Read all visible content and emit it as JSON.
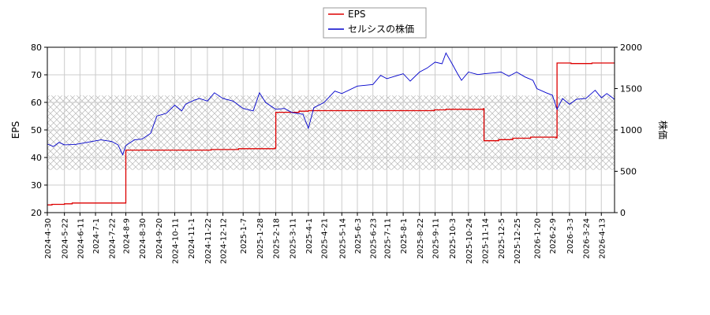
{
  "chart_data": {
    "type": "line",
    "title": "",
    "xlabel": "",
    "ylabel": "EPS",
    "y2label": "株価",
    "ylim": [
      20,
      80
    ],
    "y2lim": [
      0,
      2000
    ],
    "yticks": [
      20,
      30,
      40,
      50,
      60,
      70,
      80
    ],
    "y2ticks": [
      0,
      500,
      1000,
      1500,
      2000
    ],
    "xlim": [
      "2024-04-30",
      "2026-04-30"
    ],
    "xticks": [
      "2024-4-30",
      "2024-5-22",
      "2024-6-11",
      "2024-7-1",
      "2024-7-22",
      "2024-8-9",
      "2024-8-30",
      "2024-9-20",
      "2024-10-11",
      "2024-11-1",
      "2024-11-22",
      "2024-12-12",
      "2025-1-7",
      "2025-1-28",
      "2025-2-18",
      "2025-3-11",
      "2025-4-1",
      "2025-4-21",
      "2025-5-14",
      "2025-6-3",
      "2025-6-23",
      "2025-7-11",
      "2025-8-1",
      "2025-8-22",
      "2025-9-11",
      "2025-10-3",
      "2025-10-24",
      "2025-11-14",
      "2025-12-5",
      "2025-12-25",
      "2026-1-20",
      "2026-2-9",
      "2026-3-3",
      "2026-3-24",
      "2026-4-13"
    ],
    "grid": true,
    "legend_position": "top-center",
    "hatched_band": [
      35.5,
      62.5
    ],
    "series": [
      {
        "name": "EPS",
        "axis": "left",
        "color": "#dd0000",
        "step": true,
        "points": [
          [
            "2024-04-30",
            22.8
          ],
          [
            "2024-05-06",
            23.0
          ],
          [
            "2024-05-22",
            23.2
          ],
          [
            "2024-06-01",
            23.5
          ],
          [
            "2024-08-08",
            23.5
          ],
          [
            "2024-08-09",
            42.7
          ],
          [
            "2024-11-27",
            42.9
          ],
          [
            "2025-01-01",
            43.2
          ],
          [
            "2025-02-17",
            43.4
          ],
          [
            "2025-02-18",
            56.4
          ],
          [
            "2025-03-20",
            56.8
          ],
          [
            "2025-04-01",
            57.0
          ],
          [
            "2025-09-01",
            57.0
          ],
          [
            "2025-09-10",
            57.3
          ],
          [
            "2025-09-25",
            57.5
          ],
          [
            "2025-11-12",
            57.7
          ],
          [
            "2025-11-13",
            46.1
          ],
          [
            "2025-12-02",
            46.5
          ],
          [
            "2025-12-20",
            47.0
          ],
          [
            "2026-01-12",
            47.4
          ],
          [
            "2026-02-14",
            47.1
          ],
          [
            "2026-02-15",
            74.3
          ],
          [
            "2026-03-05",
            74.1
          ],
          [
            "2026-04-01",
            74.3
          ],
          [
            "2026-04-30",
            74.3
          ]
        ]
      },
      {
        "name": "セルシスの株価",
        "axis": "right",
        "color": "#0000cc",
        "points": [
          [
            "2024-04-30",
            830
          ],
          [
            "2024-05-08",
            800
          ],
          [
            "2024-05-15",
            850
          ],
          [
            "2024-05-22",
            820
          ],
          [
            "2024-06-05",
            825
          ],
          [
            "2024-06-20",
            850
          ],
          [
            "2024-07-08",
            880
          ],
          [
            "2024-07-22",
            860
          ],
          [
            "2024-07-30",
            820
          ],
          [
            "2024-08-05",
            700
          ],
          [
            "2024-08-09",
            810
          ],
          [
            "2024-08-20",
            880
          ],
          [
            "2024-08-30",
            890
          ],
          [
            "2024-09-10",
            960
          ],
          [
            "2024-09-18",
            1170
          ],
          [
            "2024-09-30",
            1200
          ],
          [
            "2024-10-11",
            1300
          ],
          [
            "2024-10-20",
            1230
          ],
          [
            "2024-10-25",
            1310
          ],
          [
            "2024-11-05",
            1360
          ],
          [
            "2024-11-12",
            1380
          ],
          [
            "2024-11-22",
            1350
          ],
          [
            "2024-12-01",
            1450
          ],
          [
            "2024-12-12",
            1380
          ],
          [
            "2024-12-25",
            1350
          ],
          [
            "2025-01-07",
            1260
          ],
          [
            "2025-01-20",
            1230
          ],
          [
            "2025-01-28",
            1450
          ],
          [
            "2025-02-05",
            1330
          ],
          [
            "2025-02-18",
            1250
          ],
          [
            "2025-03-01",
            1260
          ],
          [
            "2025-03-11",
            1210
          ],
          [
            "2025-03-25",
            1190
          ],
          [
            "2025-04-01",
            1020
          ],
          [
            "2025-04-08",
            1270
          ],
          [
            "2025-04-21",
            1330
          ],
          [
            "2025-05-05",
            1470
          ],
          [
            "2025-05-14",
            1440
          ],
          [
            "2025-06-03",
            1530
          ],
          [
            "2025-06-23",
            1550
          ],
          [
            "2025-07-03",
            1660
          ],
          [
            "2025-07-11",
            1620
          ],
          [
            "2025-08-01",
            1680
          ],
          [
            "2025-08-10",
            1590
          ],
          [
            "2025-08-22",
            1700
          ],
          [
            "2025-09-01",
            1750
          ],
          [
            "2025-09-11",
            1820
          ],
          [
            "2025-09-20",
            1800
          ],
          [
            "2025-09-25",
            1930
          ],
          [
            "2025-10-03",
            1800
          ],
          [
            "2025-10-10",
            1680
          ],
          [
            "2025-10-15",
            1600
          ],
          [
            "2025-10-24",
            1700
          ],
          [
            "2025-11-05",
            1670
          ],
          [
            "2025-11-14",
            1680
          ],
          [
            "2025-11-25",
            1690
          ],
          [
            "2025-12-05",
            1700
          ],
          [
            "2025-12-15",
            1650
          ],
          [
            "2025-12-25",
            1700
          ],
          [
            "2026-01-05",
            1640
          ],
          [
            "2026-01-15",
            1600
          ],
          [
            "2026-01-20",
            1500
          ],
          [
            "2026-02-01",
            1450
          ],
          [
            "2026-02-09",
            1420
          ],
          [
            "2026-02-15",
            1250
          ],
          [
            "2026-02-22",
            1380
          ],
          [
            "2026-03-03",
            1310
          ],
          [
            "2026-03-12",
            1370
          ],
          [
            "2026-03-24",
            1380
          ],
          [
            "2026-04-05",
            1480
          ],
          [
            "2026-04-13",
            1390
          ],
          [
            "2026-04-20",
            1440
          ],
          [
            "2026-04-30",
            1370
          ]
        ]
      }
    ]
  }
}
